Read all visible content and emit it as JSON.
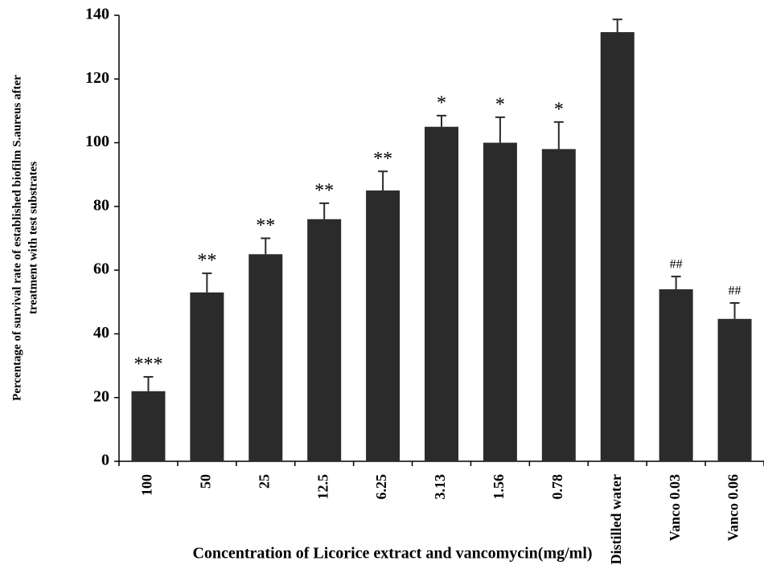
{
  "chart_data": {
    "type": "bar",
    "xlabel": "Concentration of Licorice extract and vancomycin(mg/ml)",
    "ylabel": [
      "Percentage of survival rate of established biofilm S.aureus after",
      "treatment with test substrates"
    ],
    "categories": [
      "100",
      "50",
      "25",
      "12.5",
      "6.25",
      "3.13",
      "1.56",
      "0.78",
      "Distilled water",
      "Vanco 0.03",
      "Vanco 0.06"
    ],
    "values": [
      22,
      53,
      65,
      76,
      85,
      105,
      100,
      98,
      134.7,
      54,
      44.7
    ],
    "errors": [
      4.5,
      6,
      5,
      5,
      6,
      3.5,
      8,
      8.5,
      4,
      4,
      5
    ],
    "annotations": [
      "***",
      "**",
      "**",
      "**",
      "**",
      "*",
      "*",
      "*",
      null,
      "##",
      "##"
    ],
    "color": "#2b2b2b",
    "ylim": [
      0,
      140
    ],
    "yticks": [
      0,
      20,
      40,
      60,
      80,
      100,
      120,
      140
    ]
  }
}
